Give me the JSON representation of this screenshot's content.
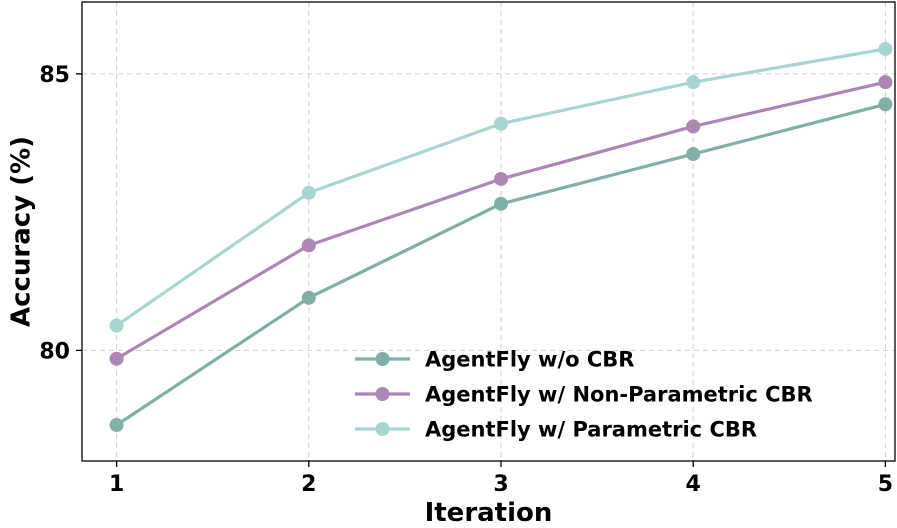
{
  "chart_data": {
    "type": "line",
    "title": "",
    "xlabel": "Iteration",
    "ylabel": "Accuracy (%)",
    "categories": [
      "1",
      "2",
      "3",
      "4",
      "5"
    ],
    "x": [
      1,
      2,
      3,
      4,
      5
    ],
    "xlim": [
      0.82,
      5.05
    ],
    "ylim": [
      78.0,
      86.3
    ],
    "yticks": [
      80,
      85
    ],
    "ytick_labels": [
      "80",
      "85"
    ],
    "grid": true,
    "legend_position": "lower-right",
    "series": [
      {
        "name": "AgentFly w/o CBR",
        "color": "#7fafa6",
        "values": [
          78.65,
          80.95,
          82.65,
          83.55,
          84.45
        ]
      },
      {
        "name": "AgentFly w/ Non-Parametric CBR",
        "color": "#aa88b3",
        "values": [
          79.85,
          81.9,
          83.1,
          84.05,
          84.85
        ]
      },
      {
        "name": "AgentFly w/ Parametric CBR",
        "color": "#a8d5d1",
        "values": [
          80.45,
          82.85,
          84.1,
          84.85,
          85.45
        ]
      }
    ]
  }
}
